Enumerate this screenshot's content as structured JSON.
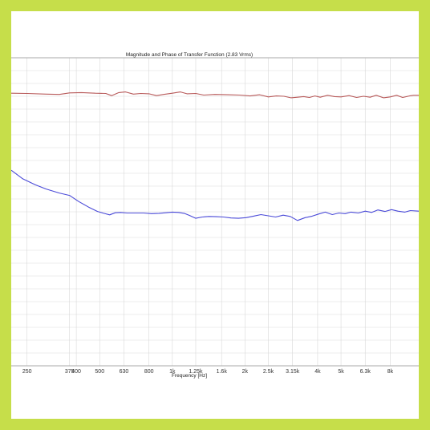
{
  "colors": {
    "border": "#c6de4a",
    "background": "#ffffff",
    "grid": "#d9d9d9",
    "phase_line": "#b85a5a",
    "magnitude_line": "#4a4ad8"
  },
  "chart_data": {
    "type": "line",
    "title": "Magnitude and Phase of Transfer Function (2.83 Vrms)",
    "xlabel": "Frequency [Hz]",
    "ylabel": "",
    "x_scale": "log",
    "xlim": [
      215,
      10500
    ],
    "ylim": [
      0,
      100
    ],
    "grid": true,
    "x_ticks": [
      {
        "value": 250,
        "label": "250"
      },
      {
        "value": 375,
        "label": "375"
      },
      {
        "value": 400,
        "label": "400"
      },
      {
        "value": 500,
        "label": "500"
      },
      {
        "value": 630,
        "label": "630"
      },
      {
        "value": 800,
        "label": "800"
      },
      {
        "value": 1000,
        "label": "1k"
      },
      {
        "value": 1250,
        "label": "1.25k"
      },
      {
        "value": 1600,
        "label": "1.6k"
      },
      {
        "value": 2000,
        "label": "2k"
      },
      {
        "value": 2500,
        "label": "2.5k"
      },
      {
        "value": 3150,
        "label": "3.15k"
      },
      {
        "value": 4000,
        "label": "4k"
      },
      {
        "value": 5000,
        "label": "5k"
      },
      {
        "value": 6300,
        "label": "6.3k"
      },
      {
        "value": 8000,
        "label": "8k"
      }
    ],
    "series": [
      {
        "key": "phase",
        "x": [
          215,
          250,
          300,
          340,
          375,
          420,
          480,
          530,
          560,
          600,
          640,
          690,
          740,
          800,
          860,
          920,
          1000,
          1080,
          1150,
          1250,
          1350,
          1500,
          1700,
          1900,
          2100,
          2300,
          2500,
          2700,
          2900,
          3100,
          3300,
          3500,
          3700,
          3900,
          4100,
          4400,
          4700,
          5000,
          5400,
          5800,
          6200,
          6600,
          7000,
          7500,
          8000,
          8500,
          9000,
          9600,
          10000,
          10500
        ],
        "y": [
          88.5,
          88.4,
          88.2,
          88.1,
          88.6,
          88.7,
          88.5,
          88.4,
          87.7,
          88.7,
          88.9,
          88.2,
          88.4,
          88.3,
          87.7,
          88.1,
          88.5,
          88.9,
          88.3,
          88.4,
          87.9,
          88.1,
          88.0,
          87.9,
          87.6,
          88.0,
          87.3,
          87.6,
          87.5,
          87.0,
          87.2,
          87.4,
          87.1,
          87.6,
          87.2,
          87.8,
          87.4,
          87.3,
          87.7,
          87.1,
          87.5,
          87.2,
          87.8,
          87.0,
          87.3,
          87.8,
          87.1,
          87.6,
          87.8,
          87.8
        ]
      },
      {
        "key": "magnitude",
        "x": [
          215,
          240,
          270,
          300,
          340,
          375,
          410,
          450,
          490,
          520,
          550,
          580,
          610,
          650,
          700,
          760,
          820,
          880,
          940,
          1000,
          1060,
          1120,
          1180,
          1250,
          1330,
          1420,
          1520,
          1630,
          1750,
          1880,
          2020,
          2170,
          2330,
          2500,
          2680,
          2880,
          3080,
          3300,
          3550,
          3800,
          4050,
          4300,
          4600,
          4900,
          5200,
          5500,
          5900,
          6300,
          6700,
          7100,
          7600,
          8100,
          8600,
          9200,
          9700,
          10500
        ],
        "y": [
          63.5,
          60.7,
          58.8,
          57.4,
          56.1,
          55.3,
          53.3,
          51.5,
          50.1,
          49.5,
          49.0,
          49.7,
          49.8,
          49.6,
          49.6,
          49.6,
          49.4,
          49.5,
          49.7,
          49.9,
          49.8,
          49.5,
          48.8,
          47.9,
          48.3,
          48.5,
          48.4,
          48.3,
          48.0,
          47.9,
          48.1,
          48.6,
          49.1,
          48.7,
          48.3,
          48.9,
          48.5,
          47.2,
          48.1,
          48.6,
          49.3,
          49.9,
          49.1,
          49.6,
          49.4,
          49.9,
          49.6,
          50.2,
          49.8,
          50.6,
          50.1,
          50.7,
          50.2,
          49.9,
          50.4,
          50.2
        ]
      }
    ]
  }
}
